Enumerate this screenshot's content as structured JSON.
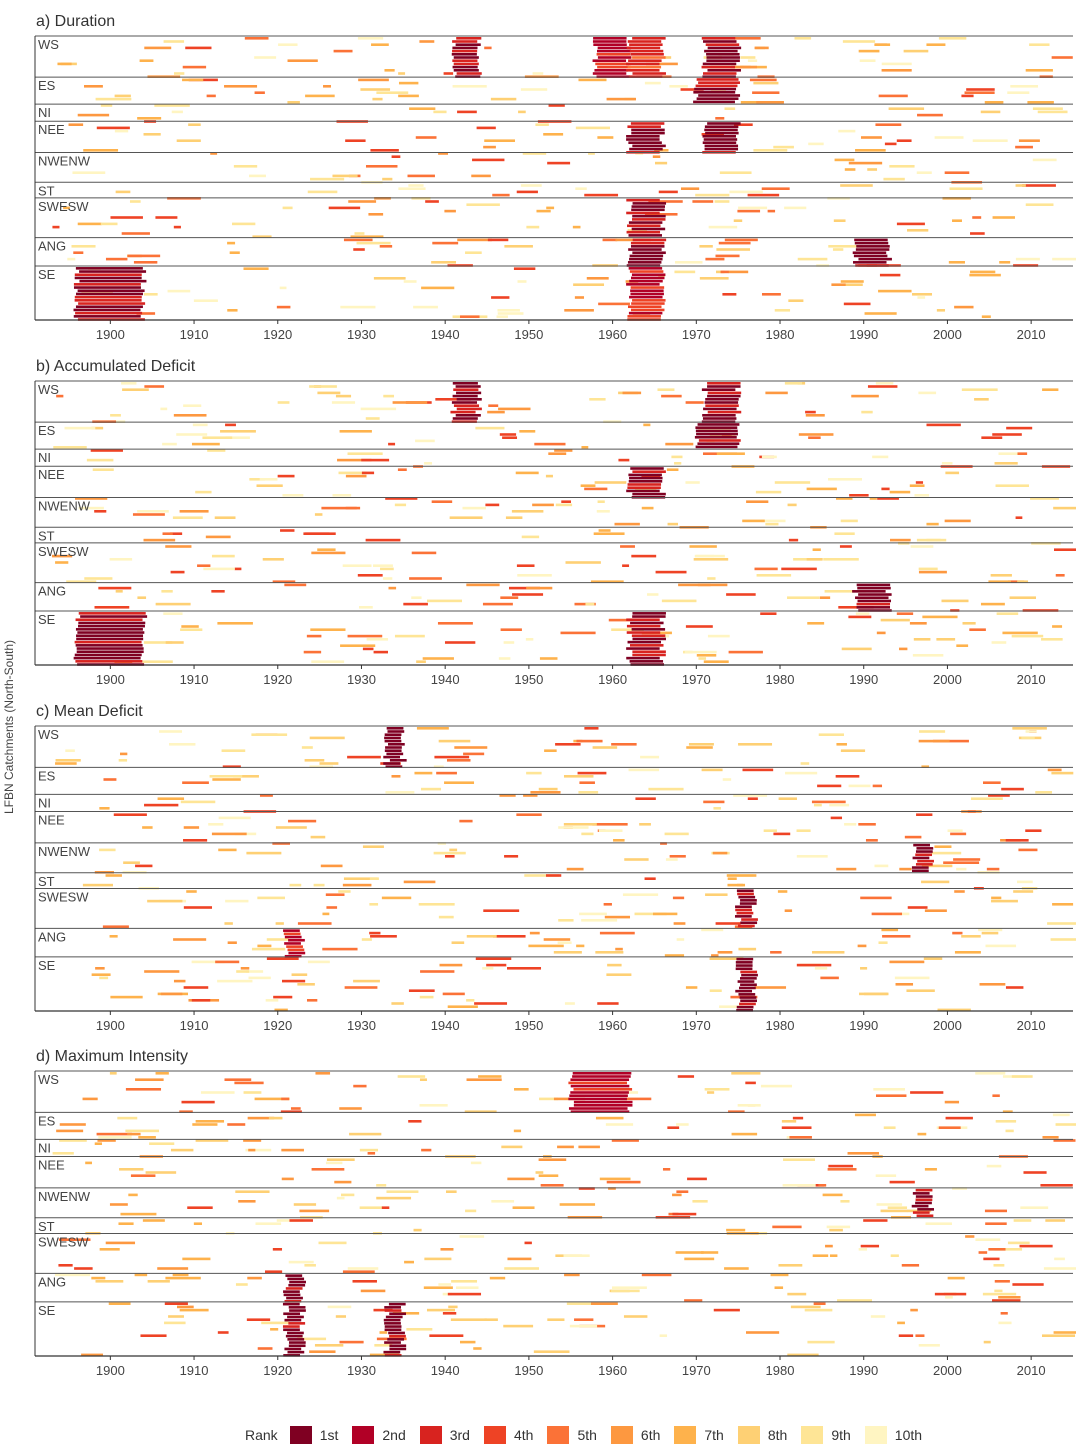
{
  "y_axis_label": "LFBN Catchments (North-South)",
  "legend": {
    "title": "Rank",
    "items": [
      {
        "label": "1st",
        "color": "#7f0022"
      },
      {
        "label": "2nd",
        "color": "#b10026"
      },
      {
        "label": "3rd",
        "color": "#d8231f"
      },
      {
        "label": "4th",
        "color": "#ee4325"
      },
      {
        "label": "5th",
        "color": "#fb7237"
      },
      {
        "label": "6th",
        "color": "#fd9840"
      },
      {
        "label": "7th",
        "color": "#feb24c"
      },
      {
        "label": "8th",
        "color": "#fed074"
      },
      {
        "label": "9th",
        "color": "#fee596"
      },
      {
        "label": "10th",
        "color": "#fff5c2"
      }
    ]
  },
  "chart_data": [
    {
      "type": "heatmap",
      "title": "a) Duration",
      "xlim": [
        1891,
        2015
      ],
      "xticks": [
        1900,
        1910,
        1920,
        1930,
        1940,
        1950,
        1960,
        1970,
        1980,
        1990,
        2000,
        2010
      ],
      "regions": [
        "WS",
        "ES",
        "NI",
        "NEE",
        "NWENW",
        "ST",
        "SWESW",
        "ANG",
        "SE"
      ],
      "region_bounds": [
        0,
        0.145,
        0.24,
        0.3,
        0.41,
        0.515,
        0.57,
        0.71,
        0.81,
        1.0
      ],
      "hotspots": [
        {
          "region": "WS",
          "x": [
            1941,
            1944
          ],
          "rank": 1
        },
        {
          "region": "WS",
          "x": [
            1958,
            1962
          ],
          "rank": 2
        },
        {
          "region": "WS",
          "x": [
            1962,
            1966
          ],
          "rank": 3
        },
        {
          "region": "WS",
          "x": [
            1971,
            1975
          ],
          "rank": 1
        },
        {
          "region": "ES",
          "x": [
            1970,
            1975
          ],
          "rank": 1
        },
        {
          "region": "NEE",
          "x": [
            1962,
            1966
          ],
          "rank": 1
        },
        {
          "region": "NEE",
          "x": [
            1971,
            1975
          ],
          "rank": 1
        },
        {
          "region": "SWESW",
          "x": [
            1962,
            1966
          ],
          "rank": 1
        },
        {
          "region": "ANG",
          "x": [
            1962,
            1966
          ],
          "rank": 1
        },
        {
          "region": "ANG",
          "x": [
            1989,
            1993
          ],
          "rank": 1
        },
        {
          "region": "SE",
          "x": [
            1896,
            1904
          ],
          "rank": 1
        },
        {
          "region": "SE",
          "x": [
            1962,
            1966
          ],
          "rank": 2
        }
      ]
    },
    {
      "type": "heatmap",
      "title": "b) Accumulated Deficit",
      "xlim": [
        1891,
        2015
      ],
      "xticks": [
        1900,
        1910,
        1920,
        1930,
        1940,
        1950,
        1960,
        1970,
        1980,
        1990,
        2000,
        2010
      ],
      "regions": [
        "WS",
        "ES",
        "NI",
        "NEE",
        "NWENW",
        "ST",
        "SWESW",
        "ANG",
        "SE"
      ],
      "region_bounds": [
        0,
        0.145,
        0.24,
        0.3,
        0.41,
        0.515,
        0.57,
        0.71,
        0.81,
        1.0
      ],
      "hotspots": [
        {
          "region": "WS",
          "x": [
            1941,
            1944
          ],
          "rank": 1
        },
        {
          "region": "WS",
          "x": [
            1971,
            1975
          ],
          "rank": 1
        },
        {
          "region": "ES",
          "x": [
            1970,
            1975
          ],
          "rank": 1
        },
        {
          "region": "NEE",
          "x": [
            1962,
            1966
          ],
          "rank": 1
        },
        {
          "region": "ANG",
          "x": [
            1989,
            1993
          ],
          "rank": 1
        },
        {
          "region": "SE",
          "x": [
            1896,
            1904
          ],
          "rank": 1
        },
        {
          "region": "SE",
          "x": [
            1962,
            1966
          ],
          "rank": 1
        }
      ]
    },
    {
      "type": "heatmap",
      "title": "c) Mean Deficit",
      "xlim": [
        1891,
        2015
      ],
      "xticks": [
        1900,
        1910,
        1920,
        1930,
        1940,
        1950,
        1960,
        1970,
        1980,
        1990,
        2000,
        2010
      ],
      "regions": [
        "WS",
        "ES",
        "NI",
        "NEE",
        "NWENW",
        "ST",
        "SWESW",
        "ANG",
        "SE"
      ],
      "region_bounds": [
        0,
        0.145,
        0.24,
        0.3,
        0.41,
        0.515,
        0.57,
        0.71,
        0.81,
        1.0
      ],
      "hotspots": [
        {
          "region": "WS",
          "x": [
            1933,
            1935
          ],
          "rank": 1
        },
        {
          "region": "NWENW",
          "x": [
            1996,
            1998
          ],
          "rank": 1
        },
        {
          "region": "SWESW",
          "x": [
            1975,
            1977
          ],
          "rank": 1
        },
        {
          "region": "ANG",
          "x": [
            1921,
            1923
          ],
          "rank": 2
        },
        {
          "region": "SE",
          "x": [
            1975,
            1977
          ],
          "rank": 1
        }
      ]
    },
    {
      "type": "heatmap",
      "title": "d) Maximum Intensity",
      "xlim": [
        1891,
        2015
      ],
      "xticks": [
        1900,
        1910,
        1920,
        1930,
        1940,
        1950,
        1960,
        1970,
        1980,
        1990,
        2000,
        2010
      ],
      "regions": [
        "WS",
        "ES",
        "NI",
        "NEE",
        "NWENW",
        "ST",
        "SWESW",
        "ANG",
        "SE"
      ],
      "region_bounds": [
        0,
        0.145,
        0.24,
        0.3,
        0.41,
        0.515,
        0.57,
        0.71,
        0.81,
        1.0
      ],
      "hotspots": [
        {
          "region": "WS",
          "x": [
            1955,
            1962
          ],
          "rank": 2
        },
        {
          "region": "NWENW",
          "x": [
            1996,
            1998
          ],
          "rank": 1
        },
        {
          "region": "ANG",
          "x": [
            1921,
            1923
          ],
          "rank": 1
        },
        {
          "region": "SE",
          "x": [
            1921,
            1923
          ],
          "rank": 1
        },
        {
          "region": "SE",
          "x": [
            1933,
            1935
          ],
          "rank": 1
        }
      ]
    }
  ]
}
